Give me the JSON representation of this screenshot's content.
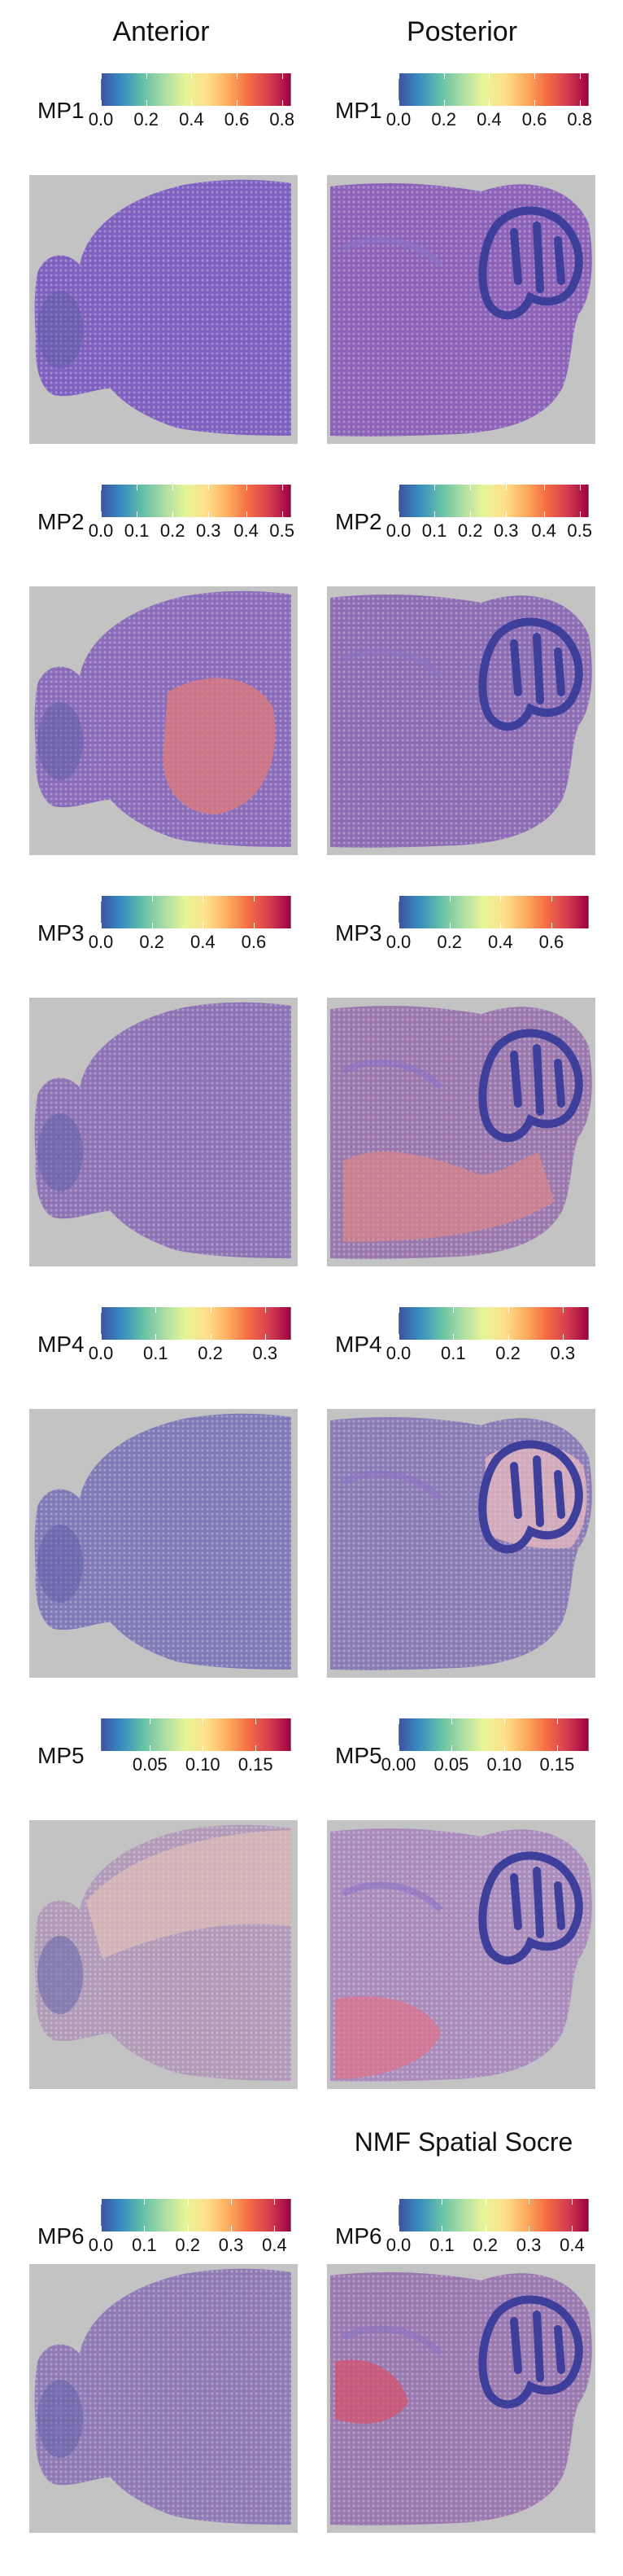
{
  "headers": {
    "anterior": "Anterior",
    "posterior": "Posterior"
  },
  "figure_title": "NMF Spatial Socre",
  "rows": [
    {
      "label": "MP1",
      "anterior_ticks": [
        "0.0",
        "0.2",
        "0.4",
        "0.6",
        "0.8"
      ],
      "anterior_pos": [
        0.0,
        0.24,
        0.48,
        0.72,
        0.96
      ],
      "posterior_ticks": [
        "0.0",
        "0.2",
        "0.4",
        "0.6",
        "0.8"
      ],
      "posterior_pos": [
        0.0,
        0.24,
        0.48,
        0.72,
        0.96
      ],
      "tint_a": "#7f5fbf",
      "tint_p": "#8b62b8"
    },
    {
      "label": "MP2",
      "anterior_ticks": [
        "0.0",
        "0.1",
        "0.2",
        "0.3",
        "0.4",
        "0.5"
      ],
      "anterior_pos": [
        0.0,
        0.19,
        0.38,
        0.57,
        0.77,
        0.96
      ],
      "posterior_ticks": [
        "0.0",
        "0.1",
        "0.2",
        "0.3",
        "0.4",
        "0.5"
      ],
      "posterior_pos": [
        0.0,
        0.19,
        0.38,
        0.57,
        0.77,
        0.96
      ],
      "tint_a": "#8a6bb9",
      "tint_p": "#8c6cb3"
    },
    {
      "label": "MP3",
      "anterior_ticks": [
        "0.0",
        "0.2",
        "0.4",
        "0.6"
      ],
      "anterior_pos": [
        0.0,
        0.27,
        0.54,
        0.81
      ],
      "posterior_ticks": [
        "0.0",
        "0.2",
        "0.4",
        "0.6"
      ],
      "posterior_pos": [
        0.0,
        0.27,
        0.54,
        0.81
      ],
      "tint_a": "#8d72b4",
      "tint_p": "#9a77ad"
    },
    {
      "label": "MP4",
      "anterior_ticks": [
        "0.0",
        "0.1",
        "0.2",
        "0.3"
      ],
      "anterior_pos": [
        0.0,
        0.29,
        0.58,
        0.87
      ],
      "posterior_ticks": [
        "0.0",
        "0.1",
        "0.2",
        "0.3"
      ],
      "posterior_pos": [
        0.0,
        0.29,
        0.58,
        0.87
      ],
      "tint_a": "#7f79b6",
      "tint_p": "#8b7bb5"
    },
    {
      "label": "MP5",
      "anterior_ticks": [
        "0.05",
        "0.10",
        "0.15"
      ],
      "anterior_pos": [
        0.26,
        0.54,
        0.82
      ],
      "posterior_ticks": [
        "0.00",
        "0.05",
        "0.10",
        "0.15"
      ],
      "posterior_pos": [
        0.0,
        0.28,
        0.56,
        0.84
      ],
      "tint_a": "#b09ab8",
      "tint_p": "#a98cbc"
    },
    {
      "label": "MP6",
      "anterior_ticks": [
        "0.0",
        "0.1",
        "0.2",
        "0.3",
        "0.4"
      ],
      "anterior_pos": [
        0.0,
        0.23,
        0.46,
        0.69,
        0.92
      ],
      "posterior_ticks": [
        "0.0",
        "0.1",
        "0.2",
        "0.3",
        "0.4"
      ],
      "posterior_pos": [
        0.0,
        0.23,
        0.46,
        0.69,
        0.92
      ],
      "tint_a": "#8f7ab5",
      "tint_p": "#9a78b0"
    }
  ],
  "colors": {
    "background": "#c2c3c2",
    "cerebellum": "#3d3f9a",
    "hotspot": "#e06a6a"
  }
}
